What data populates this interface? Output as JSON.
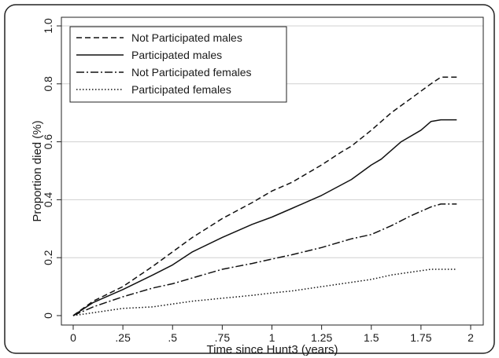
{
  "chart_data": {
    "type": "line",
    "xlabel": "Time since Hunt3 (years)",
    "ylabel": "Proportion died (%)",
    "xlim": [
      0,
      2
    ],
    "ylim": [
      0,
      1
    ],
    "x_ticks": [
      "0",
      ".25",
      ".5",
      ".75",
      "1",
      "1.25",
      "1.5",
      "1.75",
      "2"
    ],
    "x_tick_values": [
      0,
      0.25,
      0.5,
      0.75,
      1,
      1.25,
      1.5,
      1.75,
      2
    ],
    "y_ticks": [
      "0",
      "0.2",
      "0.4",
      "0.6",
      "0.8",
      "1.0"
    ],
    "y_tick_values": [
      0,
      0.2,
      0.4,
      0.6,
      0.8,
      1.0
    ],
    "grid": "horizontal",
    "legend_position": "top-left",
    "series": [
      {
        "name": "Not Participated males",
        "style": "dashed",
        "color": "#111111",
        "points": [
          [
            0,
            0
          ],
          [
            0.1,
            0.05
          ],
          [
            0.25,
            0.1
          ],
          [
            0.4,
            0.17
          ],
          [
            0.5,
            0.22
          ],
          [
            0.6,
            0.27
          ],
          [
            0.75,
            0.335
          ],
          [
            0.9,
            0.39
          ],
          [
            1.0,
            0.43
          ],
          [
            1.1,
            0.46
          ],
          [
            1.25,
            0.52
          ],
          [
            1.35,
            0.565
          ],
          [
            1.4,
            0.585
          ],
          [
            1.5,
            0.64
          ],
          [
            1.6,
            0.7
          ],
          [
            1.7,
            0.75
          ],
          [
            1.8,
            0.8
          ],
          [
            1.85,
            0.823
          ],
          [
            1.93,
            0.823
          ]
        ]
      },
      {
        "name": "Participated males",
        "style": "solid",
        "color": "#111111",
        "points": [
          [
            0,
            0
          ],
          [
            0.1,
            0.045
          ],
          [
            0.25,
            0.09
          ],
          [
            0.4,
            0.14
          ],
          [
            0.5,
            0.175
          ],
          [
            0.6,
            0.22
          ],
          [
            0.75,
            0.27
          ],
          [
            0.9,
            0.315
          ],
          [
            1.0,
            0.34
          ],
          [
            1.1,
            0.37
          ],
          [
            1.25,
            0.415
          ],
          [
            1.4,
            0.47
          ],
          [
            1.5,
            0.52
          ],
          [
            1.55,
            0.54
          ],
          [
            1.65,
            0.6
          ],
          [
            1.75,
            0.64
          ],
          [
            1.8,
            0.67
          ],
          [
            1.85,
            0.676
          ],
          [
            1.93,
            0.676
          ]
        ]
      },
      {
        "name": "Not Participated females",
        "style": "dashdot",
        "color": "#111111",
        "points": [
          [
            0,
            0
          ],
          [
            0.1,
            0.03
          ],
          [
            0.25,
            0.065
          ],
          [
            0.4,
            0.095
          ],
          [
            0.5,
            0.11
          ],
          [
            0.6,
            0.13
          ],
          [
            0.75,
            0.16
          ],
          [
            0.9,
            0.18
          ],
          [
            1.0,
            0.195
          ],
          [
            1.1,
            0.21
          ],
          [
            1.25,
            0.235
          ],
          [
            1.4,
            0.265
          ],
          [
            1.5,
            0.28
          ],
          [
            1.6,
            0.31
          ],
          [
            1.7,
            0.345
          ],
          [
            1.8,
            0.375
          ],
          [
            1.85,
            0.385
          ],
          [
            1.93,
            0.385
          ]
        ]
      },
      {
        "name": "Participated females",
        "style": "dotted",
        "color": "#111111",
        "points": [
          [
            0,
            0
          ],
          [
            0.15,
            0.015
          ],
          [
            0.25,
            0.025
          ],
          [
            0.4,
            0.03
          ],
          [
            0.5,
            0.04
          ],
          [
            0.6,
            0.05
          ],
          [
            0.75,
            0.06
          ],
          [
            0.9,
            0.07
          ],
          [
            1.0,
            0.078
          ],
          [
            1.1,
            0.085
          ],
          [
            1.25,
            0.1
          ],
          [
            1.4,
            0.115
          ],
          [
            1.5,
            0.125
          ],
          [
            1.6,
            0.14
          ],
          [
            1.7,
            0.15
          ],
          [
            1.75,
            0.155
          ],
          [
            1.8,
            0.16
          ],
          [
            1.93,
            0.16
          ]
        ]
      }
    ]
  }
}
